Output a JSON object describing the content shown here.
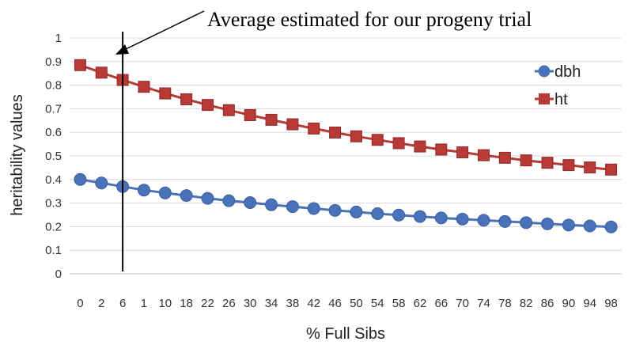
{
  "chart_data": {
    "type": "line",
    "title": "",
    "xlabel": "% Full Sibs",
    "ylabel": "heritability values",
    "categories": [
      "0",
      "2",
      "6",
      "1",
      "10",
      "18",
      "22",
      "26",
      "30",
      "34",
      "38",
      "42",
      "46",
      "50",
      "54",
      "58",
      "62",
      "66",
      "70",
      "74",
      "78",
      "82",
      "86",
      "90",
      "94",
      "98"
    ],
    "ylim": [
      0,
      1
    ],
    "yticks": [
      "0",
      "0.1",
      "0.2",
      "0.3",
      "0.4",
      "0.5",
      "0.6",
      "0.7",
      "0.8",
      "0.9",
      "1"
    ],
    "grid": true,
    "legend_position": "top-right",
    "series": [
      {
        "name": "dbh",
        "color": "#4a72b8",
        "marker": "circle",
        "values": [
          0.4,
          0.385,
          0.37,
          0.355,
          0.343,
          0.332,
          0.32,
          0.31,
          0.302,
          0.293,
          0.285,
          0.277,
          0.269,
          0.262,
          0.255,
          0.249,
          0.243,
          0.237,
          0.232,
          0.227,
          0.222,
          0.217,
          0.212,
          0.207,
          0.203,
          0.199
        ]
      },
      {
        "name": "ht",
        "color": "#b73a37",
        "marker": "square",
        "values": [
          0.885,
          0.853,
          0.822,
          0.793,
          0.765,
          0.74,
          0.716,
          0.694,
          0.673,
          0.653,
          0.634,
          0.616,
          0.599,
          0.583,
          0.568,
          0.554,
          0.54,
          0.527,
          0.515,
          0.503,
          0.492,
          0.481,
          0.471,
          0.461,
          0.451,
          0.442
        ]
      }
    ],
    "annotation": {
      "text": "Average estimated for our progeny trial",
      "x_value": 2.5
    }
  }
}
